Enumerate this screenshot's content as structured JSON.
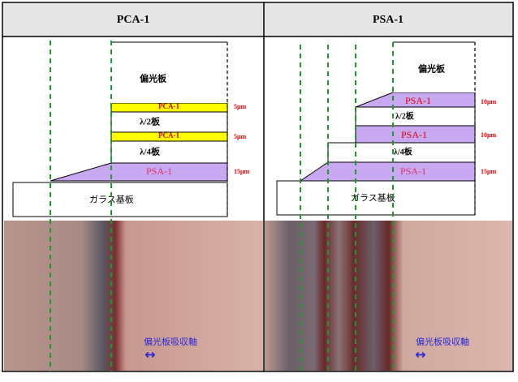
{
  "table": {
    "headers": [
      "PCA-1",
      "PSA-1"
    ]
  },
  "panels": [
    {
      "layers": [
        "偏光板",
        "PCA-1",
        "λ/2板",
        "PCA-1",
        "λ/4板",
        "PSA-1",
        "ガラス基板"
      ],
      "thickness": [
        "5μm",
        "5μm",
        "15μm"
      ],
      "caption": "偏光板吸収軸"
    },
    {
      "layers": [
        "偏光板",
        "PSA-1",
        "λ/2板",
        "PSA-1",
        "λ/4板",
        "PSA-1",
        "ガラス基板"
      ],
      "thickness": [
        "10μm",
        "10μm",
        "15μm"
      ],
      "caption": "偏光板吸収軸"
    }
  ]
}
